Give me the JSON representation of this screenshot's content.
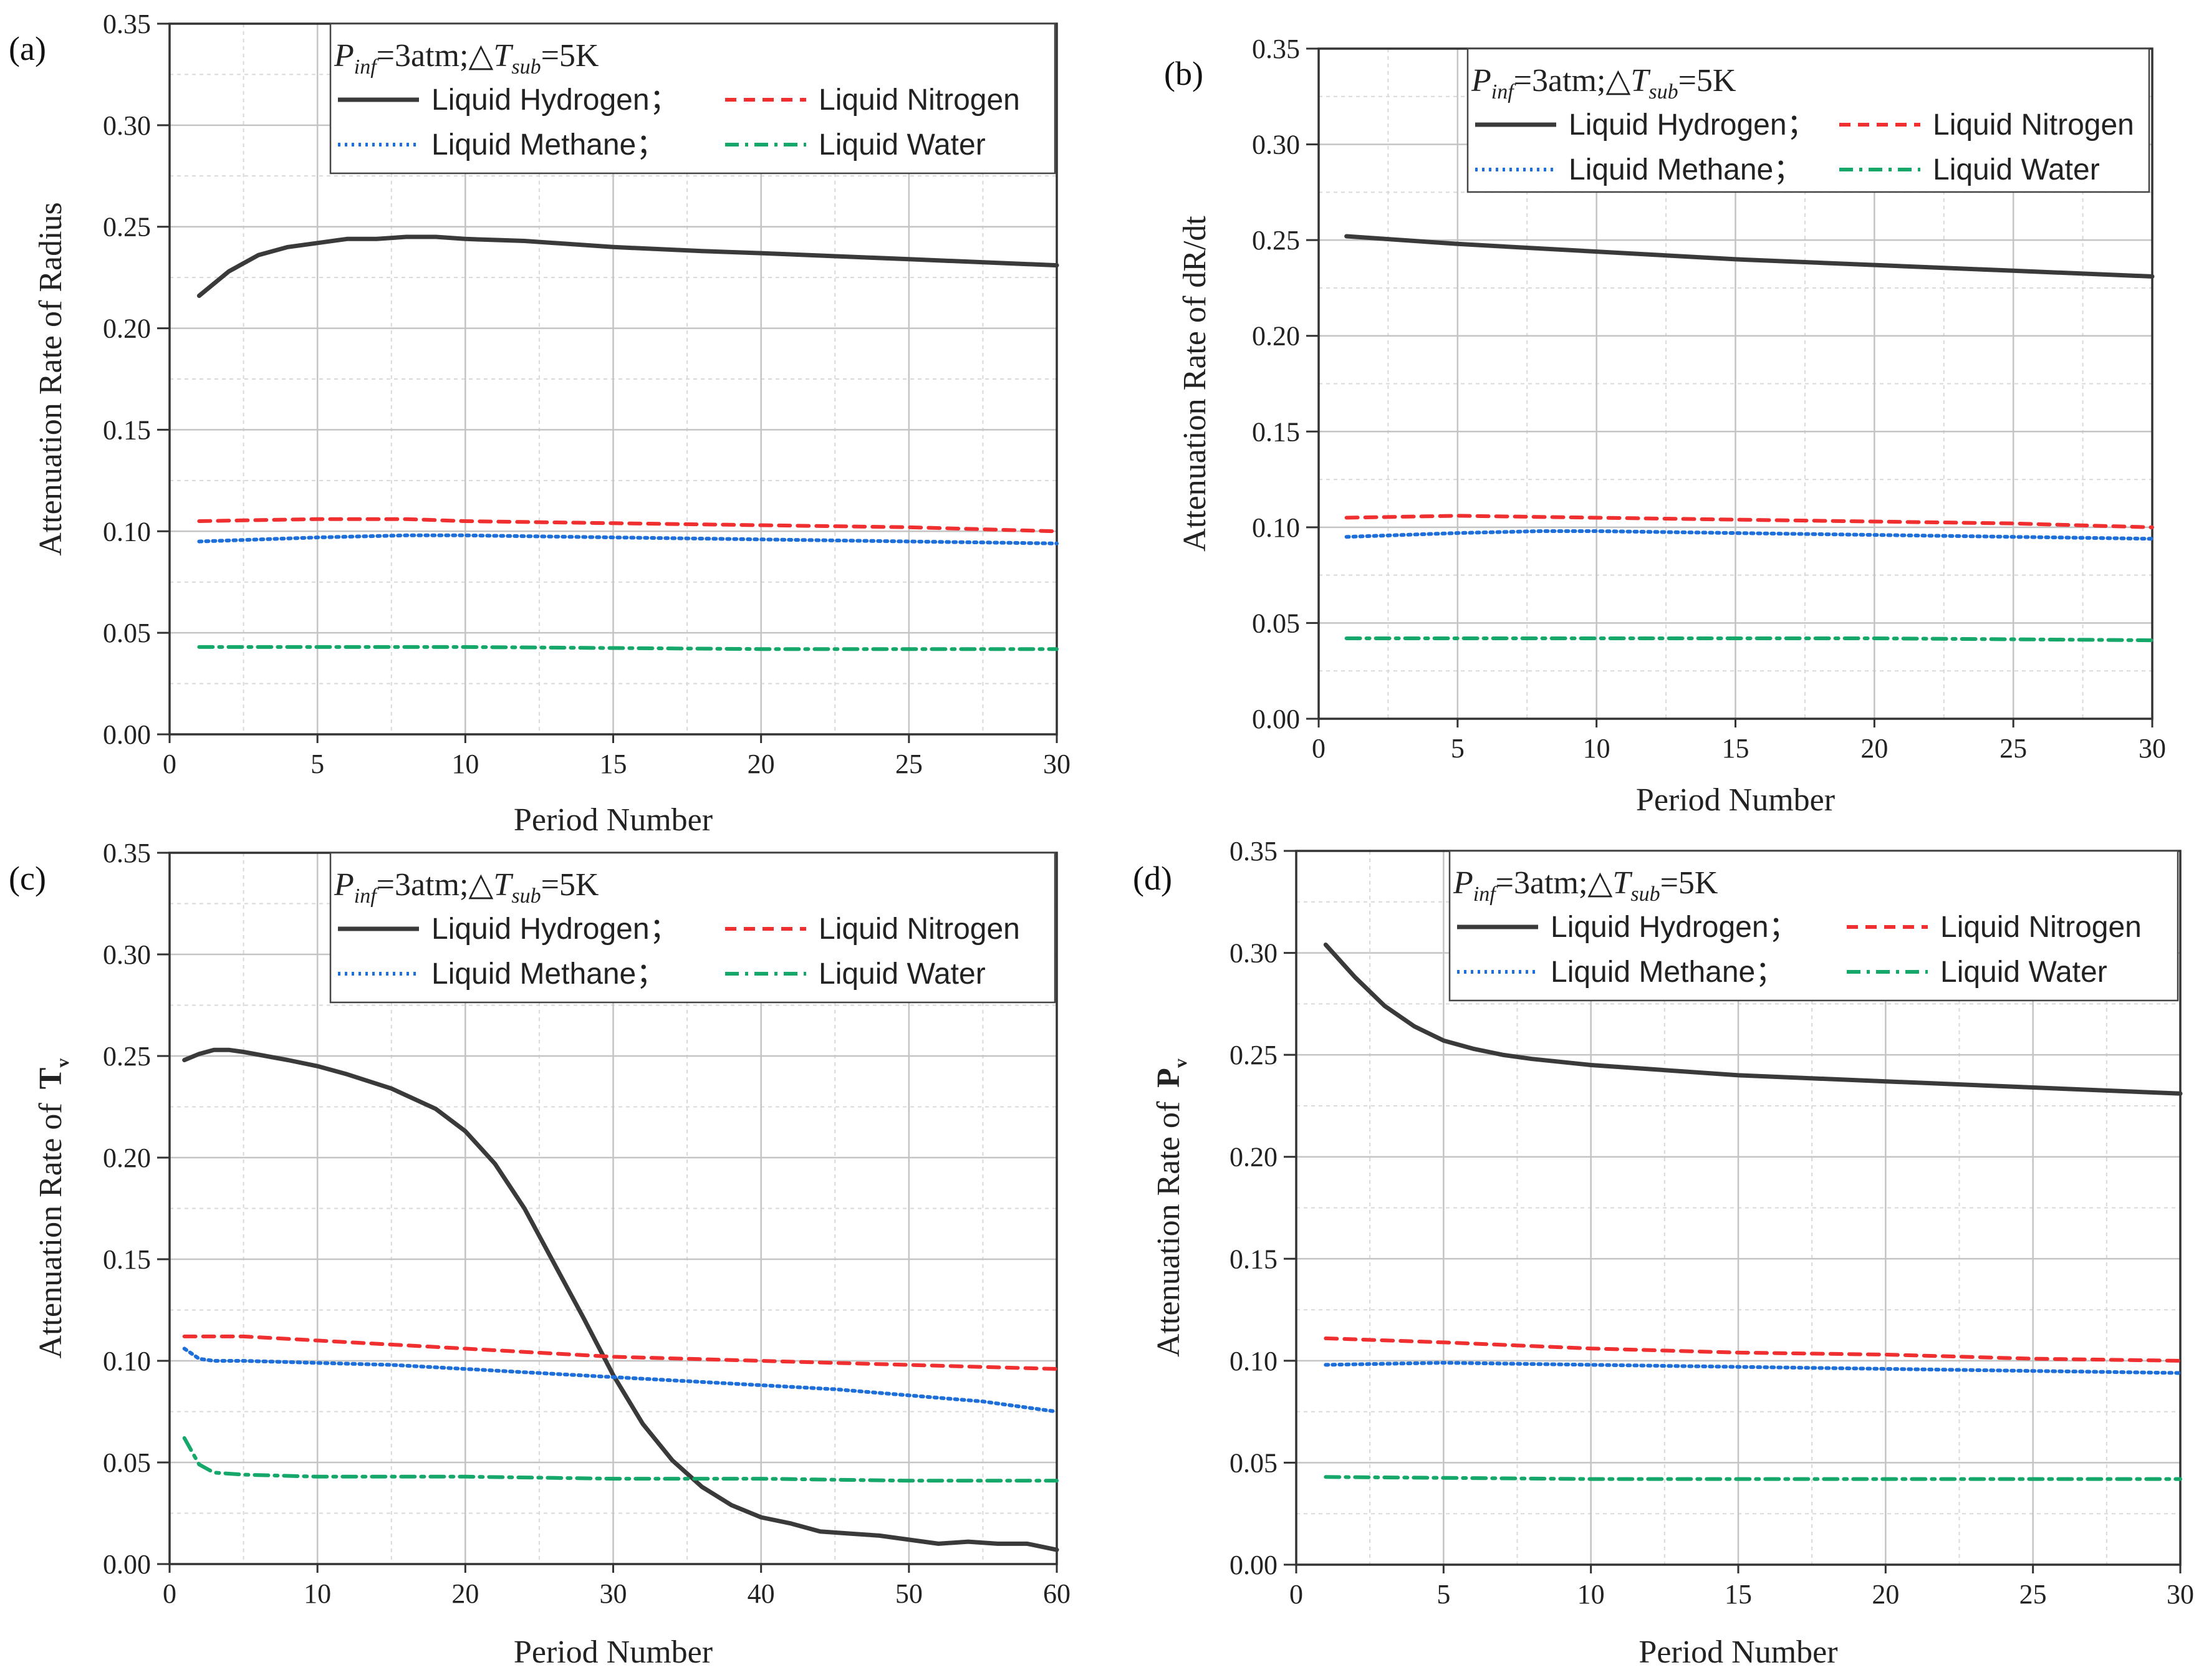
{
  "legend": {
    "condition": {
      "p": "P",
      "p_sub": "inf",
      "eq1": "=3atm;",
      "delta": "△",
      "t": "T",
      "t_sub": "sub",
      "eq2": "=5K"
    },
    "entries": [
      {
        "label": "Liquid Hydrogen；",
        "color": "#3a3a3a",
        "style": "solid"
      },
      {
        "label": "Liquid Nitrogen",
        "color": "#f03030",
        "style": "dash"
      },
      {
        "label": "Liquid Methane；",
        "color": "#1e6fd9",
        "style": "dot"
      },
      {
        "label": "Liquid Water",
        "color": "#16a86a",
        "style": "dashdot"
      }
    ]
  },
  "chart_data": [
    {
      "panel": "(a)",
      "type": "line",
      "xlabel": "Period Number",
      "ylabel": "Attenuation Rate of Radius",
      "xlim": [
        0,
        30
      ],
      "ylim": [
        0,
        0.35
      ],
      "xticks": [
        0,
        5,
        10,
        15,
        20,
        25,
        30
      ],
      "yticks": [
        0.0,
        0.05,
        0.1,
        0.15,
        0.2,
        0.25,
        0.3,
        0.35
      ],
      "series": [
        {
          "name": "Liquid Hydrogen",
          "x": [
            1,
            2,
            3,
            4,
            5,
            6,
            7,
            8,
            9,
            10,
            12,
            15,
            18,
            20,
            25,
            30
          ],
          "values": [
            0.216,
            0.228,
            0.236,
            0.24,
            0.242,
            0.244,
            0.244,
            0.245,
            0.245,
            0.244,
            0.243,
            0.24,
            0.238,
            0.237,
            0.234,
            0.231
          ]
        },
        {
          "name": "Liquid Nitrogen",
          "x": [
            1,
            5,
            8,
            10,
            15,
            20,
            25,
            30
          ],
          "values": [
            0.105,
            0.106,
            0.106,
            0.105,
            0.104,
            0.103,
            0.102,
            0.1
          ]
        },
        {
          "name": "Liquid Methane",
          "x": [
            1,
            5,
            8,
            10,
            15,
            20,
            25,
            30
          ],
          "values": [
            0.095,
            0.097,
            0.098,
            0.098,
            0.097,
            0.096,
            0.095,
            0.094
          ]
        },
        {
          "name": "Liquid Water",
          "x": [
            1,
            10,
            20,
            30
          ],
          "values": [
            0.043,
            0.043,
            0.042,
            0.042
          ]
        }
      ]
    },
    {
      "panel": "(b)",
      "type": "line",
      "xlabel": "Period Number",
      "ylabel": "Attenuation Rate of dR/dt",
      "xlim": [
        0,
        30
      ],
      "ylim": [
        0,
        0.35
      ],
      "xticks": [
        0,
        5,
        10,
        15,
        20,
        25,
        30
      ],
      "yticks": [
        0.0,
        0.05,
        0.1,
        0.15,
        0.2,
        0.25,
        0.3,
        0.35
      ],
      "series": [
        {
          "name": "Liquid Hydrogen",
          "x": [
            1,
            5,
            10,
            15,
            20,
            25,
            30
          ],
          "values": [
            0.252,
            0.248,
            0.244,
            0.24,
            0.237,
            0.234,
            0.231
          ]
        },
        {
          "name": "Liquid Nitrogen",
          "x": [
            1,
            5,
            10,
            15,
            20,
            25,
            30
          ],
          "values": [
            0.105,
            0.106,
            0.105,
            0.104,
            0.103,
            0.102,
            0.1
          ]
        },
        {
          "name": "Liquid Methane",
          "x": [
            1,
            5,
            8,
            10,
            15,
            20,
            25,
            30
          ],
          "values": [
            0.095,
            0.097,
            0.098,
            0.098,
            0.097,
            0.096,
            0.095,
            0.094
          ]
        },
        {
          "name": "Liquid Water",
          "x": [
            1,
            10,
            20,
            30
          ],
          "values": [
            0.042,
            0.042,
            0.042,
            0.041
          ]
        }
      ]
    },
    {
      "panel": "(c)",
      "type": "line",
      "xlabel": "Period Number",
      "ylabel": "Attenuation Rate of",
      "ylabel_symbol": "T",
      "ylabel_symbol_sub": "v",
      "xlim": [
        0,
        60
      ],
      "ylim": [
        0,
        0.35
      ],
      "xticks": [
        0,
        10,
        20,
        30,
        40,
        50,
        60
      ],
      "yticks": [
        0.0,
        0.05,
        0.1,
        0.15,
        0.2,
        0.25,
        0.3,
        0.35
      ],
      "series": [
        {
          "name": "Liquid Hydrogen",
          "x": [
            1,
            2,
            3,
            4,
            5,
            8,
            10,
            12,
            15,
            18,
            20,
            22,
            24,
            26,
            28,
            30,
            32,
            34,
            36,
            38,
            40,
            42,
            44,
            46,
            48,
            50,
            52,
            54,
            56,
            58,
            60
          ],
          "values": [
            0.248,
            0.251,
            0.253,
            0.253,
            0.252,
            0.248,
            0.245,
            0.241,
            0.234,
            0.224,
            0.213,
            0.197,
            0.175,
            0.148,
            0.121,
            0.093,
            0.069,
            0.051,
            0.038,
            0.029,
            0.023,
            0.02,
            0.016,
            0.015,
            0.014,
            0.012,
            0.01,
            0.011,
            0.01,
            0.01,
            0.007
          ]
        },
        {
          "name": "Liquid Nitrogen",
          "x": [
            1,
            5,
            10,
            15,
            20,
            25,
            30,
            35,
            40,
            45,
            50,
            55,
            60
          ],
          "values": [
            0.112,
            0.112,
            0.11,
            0.108,
            0.106,
            0.104,
            0.102,
            0.101,
            0.1,
            0.099,
            0.098,
            0.097,
            0.096
          ]
        },
        {
          "name": "Liquid Methane",
          "x": [
            1,
            2,
            3,
            5,
            10,
            15,
            20,
            25,
            30,
            35,
            40,
            45,
            50,
            55,
            60
          ],
          "values": [
            0.106,
            0.101,
            0.1,
            0.1,
            0.099,
            0.098,
            0.096,
            0.094,
            0.092,
            0.09,
            0.088,
            0.086,
            0.083,
            0.08,
            0.075
          ]
        },
        {
          "name": "Liquid Water",
          "x": [
            1,
            2,
            3,
            5,
            10,
            20,
            30,
            40,
            50,
            60
          ],
          "values": [
            0.062,
            0.049,
            0.045,
            0.044,
            0.043,
            0.043,
            0.042,
            0.042,
            0.041,
            0.041
          ]
        }
      ]
    },
    {
      "panel": "(d)",
      "type": "line",
      "xlabel": "Period Number",
      "ylabel": "Attenuation Rate of",
      "ylabel_symbol": "P",
      "ylabel_symbol_sub": "v",
      "xlim": [
        0,
        30
      ],
      "ylim": [
        0,
        0.35
      ],
      "xticks": [
        0,
        5,
        10,
        15,
        20,
        25,
        30
      ],
      "yticks": [
        0.0,
        0.05,
        0.1,
        0.15,
        0.2,
        0.25,
        0.3,
        0.35
      ],
      "series": [
        {
          "name": "Liquid Hydrogen",
          "x": [
            1,
            2,
            3,
            4,
            5,
            6,
            7,
            8,
            10,
            12,
            15,
            20,
            25,
            30
          ],
          "values": [
            0.304,
            0.288,
            0.274,
            0.264,
            0.257,
            0.253,
            0.25,
            0.248,
            0.245,
            0.243,
            0.24,
            0.237,
            0.234,
            0.231
          ]
        },
        {
          "name": "Liquid Nitrogen",
          "x": [
            1,
            5,
            10,
            15,
            20,
            25,
            30
          ],
          "values": [
            0.111,
            0.109,
            0.106,
            0.104,
            0.103,
            0.101,
            0.1
          ]
        },
        {
          "name": "Liquid Methane",
          "x": [
            1,
            5,
            10,
            15,
            20,
            25,
            30
          ],
          "values": [
            0.098,
            0.099,
            0.098,
            0.097,
            0.096,
            0.095,
            0.094
          ]
        },
        {
          "name": "Liquid Water",
          "x": [
            1,
            10,
            20,
            30
          ],
          "values": [
            0.043,
            0.042,
            0.042,
            0.042
          ]
        }
      ]
    }
  ]
}
